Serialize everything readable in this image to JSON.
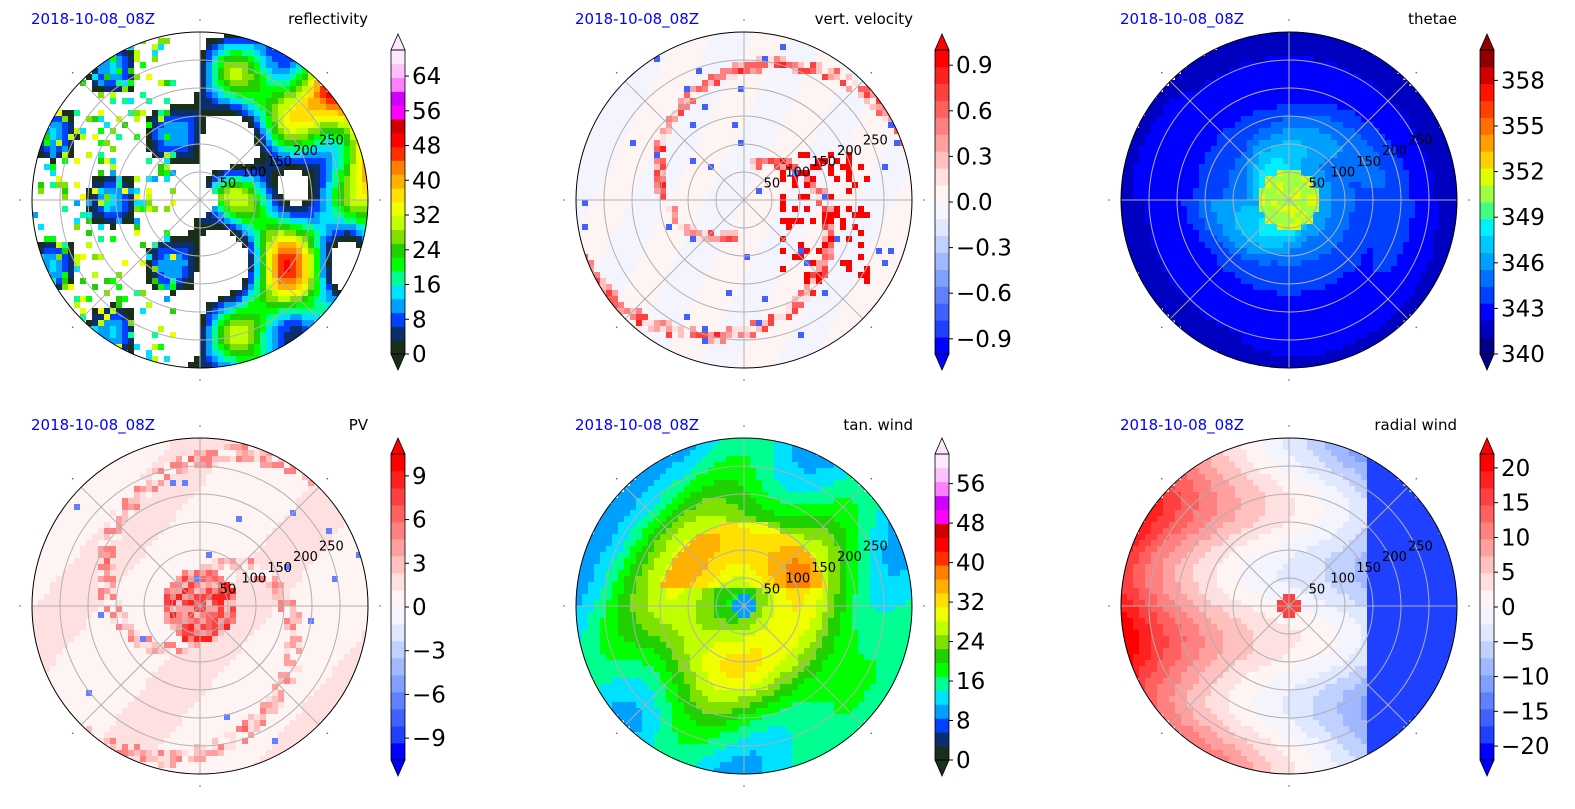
{
  "figure": {
    "date_color": "#0000ff"
  },
  "chart_data": [
    {
      "type": "heatmap",
      "projection": "polar",
      "date_label": "2018-10-08_08Z",
      "title": "reflectivity",
      "radial_ticks": [
        "50",
        "100",
        "150",
        "200",
        "250"
      ],
      "rmax": 300,
      "colorbar": {
        "ticks": [
          0,
          8,
          16,
          24,
          32,
          40,
          48,
          56,
          64
        ],
        "tick_labels": [
          "0",
          "8",
          "16",
          "24",
          "32",
          "40",
          "48",
          "56",
          "64"
        ],
        "range": [
          0,
          70
        ],
        "extend": "both",
        "colors": [
          "#1a2f1a",
          "#0a2e6e",
          "#0040ff",
          "#00a0ff",
          "#00e0ff",
          "#00ff90",
          "#00ff00",
          "#20d000",
          "#80e000",
          "#c0ff00",
          "#f0ff00",
          "#ffe000",
          "#ffb000",
          "#ff8000",
          "#ff3000",
          "#ff0000",
          "#d00000",
          "#ff00ff",
          "#d000ff",
          "#ff80ff",
          "#ffc0ff",
          "#ffe8ff"
        ]
      },
      "field": "reflectivity"
    },
    {
      "type": "heatmap",
      "projection": "polar",
      "date_label": "2018-10-08_08Z",
      "title": "vert. velocity",
      "radial_ticks": [
        "50",
        "100",
        "150",
        "200",
        "250"
      ],
      "rmax": 300,
      "colorbar": {
        "ticks": [
          0.9,
          0.6,
          0.3,
          0.0,
          -0.3,
          -0.6,
          -0.9
        ],
        "tick_labels": [
          "0.9",
          "0.6",
          "0.3",
          "0.0",
          "−0.3",
          "−0.6",
          "−0.9"
        ],
        "range": [
          -1.0,
          1.0
        ],
        "extend": "both",
        "colors": [
          "#0000ff",
          "#2040ff",
          "#4060ff",
          "#6080ff",
          "#80a0ff",
          "#a0b8ff",
          "#c0d0ff",
          "#e0e8ff",
          "#f4f4ff",
          "#fff4f4",
          "#ffe0e0",
          "#ffc0c0",
          "#ffa0a0",
          "#ff8080",
          "#ff6060",
          "#ff4040",
          "#ff2020",
          "#ff0000"
        ]
      },
      "field": "vert_velocity"
    },
    {
      "type": "heatmap",
      "projection": "polar",
      "date_label": "2018-10-08_08Z",
      "title": "thetae",
      "radial_ticks": [
        "50",
        "100",
        "150",
        "200",
        "250"
      ],
      "rmax": 300,
      "colorbar": {
        "ticks": [
          340,
          343,
          346,
          349,
          352,
          355,
          358
        ],
        "tick_labels": [
          "340",
          "343",
          "346",
          "349",
          "352",
          "355",
          "358"
        ],
        "range": [
          340,
          360
        ],
        "extend": "both",
        "colors": [
          "#00008b",
          "#0000c0",
          "#0000ff",
          "#0040ff",
          "#0070ff",
          "#00a0ff",
          "#00c8ff",
          "#00f0ff",
          "#40ff80",
          "#a0ff40",
          "#e0ff00",
          "#ffd000",
          "#ffa000",
          "#ff7000",
          "#ff4000",
          "#ff1000",
          "#d00000",
          "#900000"
        ]
      },
      "field": "thetae"
    },
    {
      "type": "heatmap",
      "projection": "polar",
      "date_label": "2018-10-08_08Z",
      "title": "PV",
      "radial_ticks": [
        "50",
        "100",
        "150",
        "200",
        "250"
      ],
      "rmax": 300,
      "colorbar": {
        "ticks": [
          9,
          6,
          3,
          0,
          -3,
          -6,
          -9
        ],
        "tick_labels": [
          "9",
          "6",
          "3",
          "0",
          "−3",
          "−6",
          "−9"
        ],
        "range": [
          -10.5,
          10.5
        ],
        "extend": "both",
        "colors": [
          "#0000ff",
          "#2040ff",
          "#4060ff",
          "#6080ff",
          "#80a0ff",
          "#a0b8ff",
          "#c0d0ff",
          "#e0e8ff",
          "#f4f4ff",
          "#fff4f4",
          "#ffe0e0",
          "#ffc0c0",
          "#ffa0a0",
          "#ff8080",
          "#ff6060",
          "#ff4040",
          "#ff2020",
          "#ff0000"
        ]
      },
      "field": "pv"
    },
    {
      "type": "heatmap",
      "projection": "polar",
      "date_label": "2018-10-08_08Z",
      "title": "tan. wind",
      "radial_ticks": [
        "50",
        "100",
        "150",
        "200",
        "250"
      ],
      "rmax": 300,
      "colorbar": {
        "ticks": [
          56,
          48,
          40,
          32,
          24,
          16,
          8,
          0
        ],
        "tick_labels": [
          "56",
          "48",
          "40",
          "32",
          "24",
          "16",
          "8",
          "0"
        ],
        "range": [
          0,
          62
        ],
        "extend": "both",
        "colors": [
          "#1a2f1a",
          "#0a2e6e",
          "#0040ff",
          "#00a0ff",
          "#00e0ff",
          "#00ff90",
          "#00ff00",
          "#20d000",
          "#80e000",
          "#c0ff00",
          "#f0ff00",
          "#ffe000",
          "#ffb000",
          "#ff8000",
          "#ff3000",
          "#ff0000",
          "#d00000",
          "#ff00ff",
          "#d000ff",
          "#ff80ff",
          "#ffc0ff",
          "#ffe8ff"
        ]
      },
      "field": "tan_wind"
    },
    {
      "type": "heatmap",
      "projection": "polar",
      "date_label": "2018-10-08_08Z",
      "title": "radial wind",
      "radial_ticks": [
        "50",
        "100",
        "150",
        "200",
        "250"
      ],
      "rmax": 300,
      "colorbar": {
        "ticks": [
          20,
          15,
          10,
          5,
          0,
          -5,
          -10,
          -15,
          -20
        ],
        "tick_labels": [
          "20",
          "15",
          "10",
          "5",
          "0",
          "−5",
          "−10",
          "−15",
          "−20"
        ],
        "range": [
          -22,
          22
        ],
        "extend": "both",
        "colors": [
          "#0000ff",
          "#2040ff",
          "#4060ff",
          "#6080ff",
          "#80a0ff",
          "#a0b8ff",
          "#c0d0ff",
          "#e0e8ff",
          "#f4f4ff",
          "#fff4f4",
          "#ffe0e0",
          "#ffc0c0",
          "#ffa0a0",
          "#ff8080",
          "#ff6060",
          "#ff4040",
          "#ff2020",
          "#ff0000"
        ]
      },
      "field": "radial_wind"
    }
  ]
}
